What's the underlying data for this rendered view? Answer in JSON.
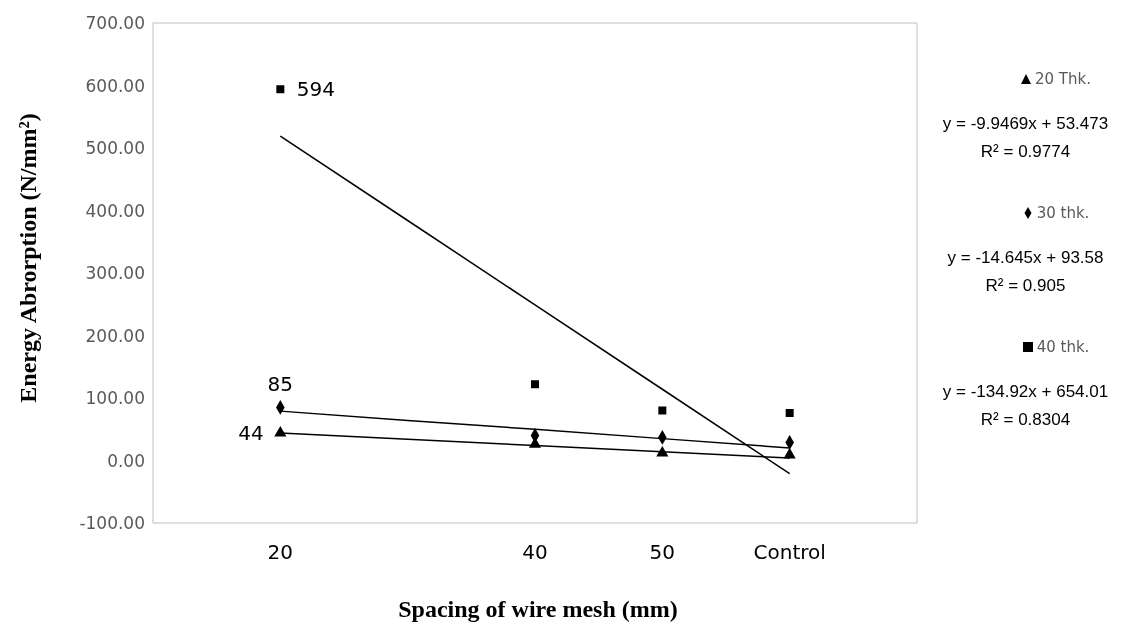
{
  "chart_data": {
    "type": "scatter",
    "xlabel": "Spacing of wire mesh (mm)",
    "ylabel": "Energy Abrorption (N/mm²)",
    "categories": [
      "20",
      null,
      "40",
      "50",
      "Control"
    ],
    "ylim": [
      -100,
      700
    ],
    "yticks": [
      {
        "value": -100,
        "label": "-100.00"
      },
      {
        "value": 0,
        "label": "0.00"
      },
      {
        "value": 100,
        "label": "100.00"
      },
      {
        "value": 200,
        "label": "200.00"
      },
      {
        "value": 300,
        "label": "300.00"
      },
      {
        "value": 400,
        "label": "400.00"
      },
      {
        "value": 500,
        "label": "500.00"
      },
      {
        "value": 600,
        "label": "600.00"
      },
      {
        "value": 700,
        "label": "700.00"
      }
    ],
    "series": [
      {
        "name": "20 Thk.",
        "color": "#000000",
        "marker": "triangle",
        "values": [
          44,
          null,
          26,
          12,
          9
        ],
        "value_labels": [
          "44",
          null,
          null,
          null,
          null
        ]
      },
      {
        "type": "line",
        "color": "#000000",
        "values": [
          44,
          34,
          24,
          14,
          4
        ]
      },
      {
        "name": "30 thk.",
        "color": "#000000",
        "marker": "diamond",
        "values": [
          85,
          null,
          40,
          37,
          29
        ],
        "value_labels": [
          "85",
          null,
          null,
          null,
          null
        ]
      },
      {
        "type": "line",
        "color": "#000000",
        "values": [
          79,
          64,
          50,
          35,
          20
        ]
      },
      {
        "name": "40 thk.",
        "color": "#000000",
        "marker": "square",
        "values": [
          594,
          null,
          122,
          80,
          76
        ],
        "value_labels": [
          "594",
          null,
          null,
          null,
          null
        ]
      },
      {
        "type": "line",
        "color": "#000000",
        "values": [
          519,
          384,
          249,
          114,
          -21
        ]
      }
    ],
    "annotations": [
      "y = -9.9469x + 53.473\nR² = 0.9774",
      "y = -14.645x + 93.58\nR² = 0.905",
      "y = -134.92x + 654.01\nR² = 0.8304"
    ],
    "grid": false,
    "legend": "right"
  }
}
